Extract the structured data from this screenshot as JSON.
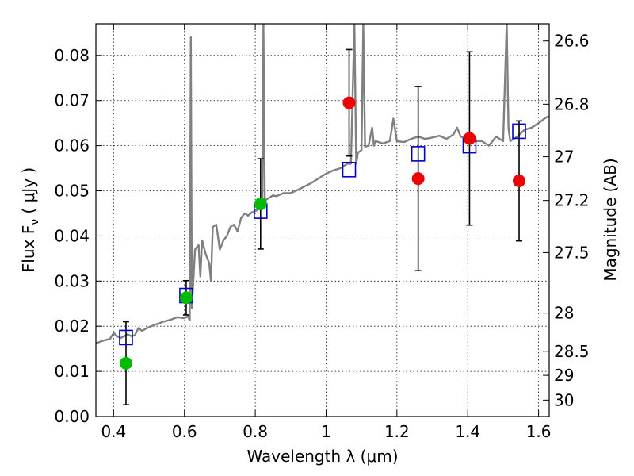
{
  "chart_data": {
    "type": "scatter",
    "xlabel": "Wavelength  λ (μm)",
    "ylabel": "Flux  F",
    "ylabel_sub": "ν",
    "ylabel_unit": "  ( μJy )",
    "y2label": "Magnitude (AB)",
    "xlim": [
      0.35,
      1.63
    ],
    "ylim": [
      0.0,
      0.087
    ],
    "grid": true,
    "x_ticks": [
      0.4,
      0.6,
      0.8,
      1.0,
      1.2,
      1.4,
      1.6
    ],
    "x_tick_labels": [
      "0.4",
      "0.6",
      "0.8",
      "1",
      "1.2",
      "1.4",
      "1.6"
    ],
    "y_ticks": [
      0.0,
      0.01,
      0.02,
      0.03,
      0.04,
      0.05,
      0.06,
      0.07,
      0.08
    ],
    "y_tick_labels": [
      "0.00",
      "0.01",
      "0.02",
      "0.03",
      "0.04",
      "0.05",
      "0.06",
      "0.07",
      "0.08"
    ],
    "mag_ticks": [
      26.6,
      26.8,
      27,
      27.2,
      27.5,
      28,
      28.5,
      29,
      30
    ],
    "mag_tick_labels": [
      "26.6",
      "26.8",
      "27",
      "27.2",
      "27.5",
      "28",
      "28.5",
      "29",
      "30"
    ],
    "colors": {
      "spectrum": "#808080",
      "model": "#0000cc",
      "green": "#00bb00",
      "red": "#ee0000",
      "error": "#000000"
    },
    "series": [
      {
        "type": "line",
        "points": [
          [
            0.35,
            0.0162
          ],
          [
            0.37,
            0.0168
          ],
          [
            0.39,
            0.0172
          ],
          [
            0.4,
            0.0185
          ],
          [
            0.41,
            0.0178
          ],
          [
            0.42,
            0.0174
          ],
          [
            0.44,
            0.0182
          ],
          [
            0.45,
            0.0178
          ],
          [
            0.46,
            0.018
          ],
          [
            0.47,
            0.0196
          ],
          [
            0.48,
            0.019
          ],
          [
            0.5,
            0.0198
          ],
          [
            0.52,
            0.0204
          ],
          [
            0.54,
            0.021
          ],
          [
            0.56,
            0.0214
          ],
          [
            0.58,
            0.022
          ],
          [
            0.6,
            0.0218
          ],
          [
            0.61,
            0.0222
          ],
          [
            0.615,
            0.0213
          ],
          [
            0.618,
            0.084
          ],
          [
            0.621,
            0.024
          ],
          [
            0.63,
            0.037
          ],
          [
            0.64,
            0.038
          ],
          [
            0.645,
            0.031
          ],
          [
            0.65,
            0.039
          ],
          [
            0.66,
            0.036
          ],
          [
            0.67,
            0.034
          ],
          [
            0.675,
            0.03
          ],
          [
            0.68,
            0.042
          ],
          [
            0.69,
            0.0425
          ],
          [
            0.7,
            0.037
          ],
          [
            0.71,
            0.039
          ],
          [
            0.72,
            0.04
          ],
          [
            0.73,
            0.042
          ],
          [
            0.74,
            0.0425
          ],
          [
            0.75,
            0.041
          ],
          [
            0.76,
            0.044
          ],
          [
            0.77,
            0.045
          ],
          [
            0.78,
            0.0445
          ],
          [
            0.79,
            0.0452
          ],
          [
            0.8,
            0.0455
          ],
          [
            0.81,
            0.046
          ],
          [
            0.82,
            0.0465
          ],
          [
            0.823,
            0.087
          ],
          [
            0.827,
            0.0465
          ],
          [
            0.83,
            0.048
          ],
          [
            0.84,
            0.0485
          ],
          [
            0.85,
            0.049
          ],
          [
            0.86,
            0.0488
          ],
          [
            0.88,
            0.0495
          ],
          [
            0.9,
            0.0495
          ],
          [
            0.92,
            0.0502
          ],
          [
            0.94,
            0.051
          ],
          [
            0.96,
            0.0518
          ],
          [
            0.98,
            0.0528
          ],
          [
            1.0,
            0.0538
          ],
          [
            1.02,
            0.0545
          ],
          [
            1.04,
            0.055
          ],
          [
            1.06,
            0.056
          ],
          [
            1.07,
            0.056
          ],
          [
            1.08,
            0.087
          ],
          [
            1.085,
            0.056
          ],
          [
            1.09,
            0.0585
          ],
          [
            1.1,
            0.059
          ],
          [
            1.105,
            0.087
          ],
          [
            1.11,
            0.0598
          ],
          [
            1.12,
            0.06
          ],
          [
            1.13,
            0.064
          ],
          [
            1.135,
            0.06
          ],
          [
            1.14,
            0.061
          ],
          [
            1.16,
            0.0605
          ],
          [
            1.18,
            0.061
          ],
          [
            1.19,
            0.066
          ],
          [
            1.2,
            0.061
          ],
          [
            1.22,
            0.0608
          ],
          [
            1.24,
            0.0615
          ],
          [
            1.26,
            0.062
          ],
          [
            1.28,
            0.0615
          ],
          [
            1.3,
            0.0618
          ],
          [
            1.32,
            0.0622
          ],
          [
            1.34,
            0.0615
          ],
          [
            1.36,
            0.0625
          ],
          [
            1.37,
            0.064
          ],
          [
            1.38,
            0.062
          ],
          [
            1.4,
            0.0615
          ],
          [
            1.42,
            0.061
          ],
          [
            1.44,
            0.061
          ],
          [
            1.46,
            0.06
          ],
          [
            1.48,
            0.062
          ],
          [
            1.5,
            0.061
          ],
          [
            1.51,
            0.087
          ],
          [
            1.515,
            0.064
          ],
          [
            1.52,
            0.061
          ],
          [
            1.54,
            0.062
          ],
          [
            1.56,
            0.0635
          ],
          [
            1.58,
            0.064
          ],
          [
            1.6,
            0.065
          ],
          [
            1.62,
            0.0662
          ],
          [
            1.63,
            0.0665
          ]
        ]
      },
      {
        "type": "model-squares",
        "x": [
          0.435,
          0.605,
          0.815,
          1.065,
          1.26,
          1.405,
          1.545
        ],
        "y": [
          0.0175,
          0.0268,
          0.0455,
          0.0547,
          0.0582,
          0.06,
          0.0632
        ]
      },
      {
        "type": "points-green",
        "x": [
          0.435,
          0.605,
          0.815
        ],
        "y": [
          0.0118,
          0.0263,
          0.0471
        ],
        "err": [
          0.0092,
          0.0038,
          0.01
        ]
      },
      {
        "type": "points-red",
        "x": [
          1.065,
          1.26,
          1.405,
          1.545
        ],
        "y": [
          0.0695,
          0.0527,
          0.0616,
          0.0522
        ],
        "err": [
          0.0118,
          0.0204,
          0.0192,
          0.0133
        ]
      }
    ]
  }
}
